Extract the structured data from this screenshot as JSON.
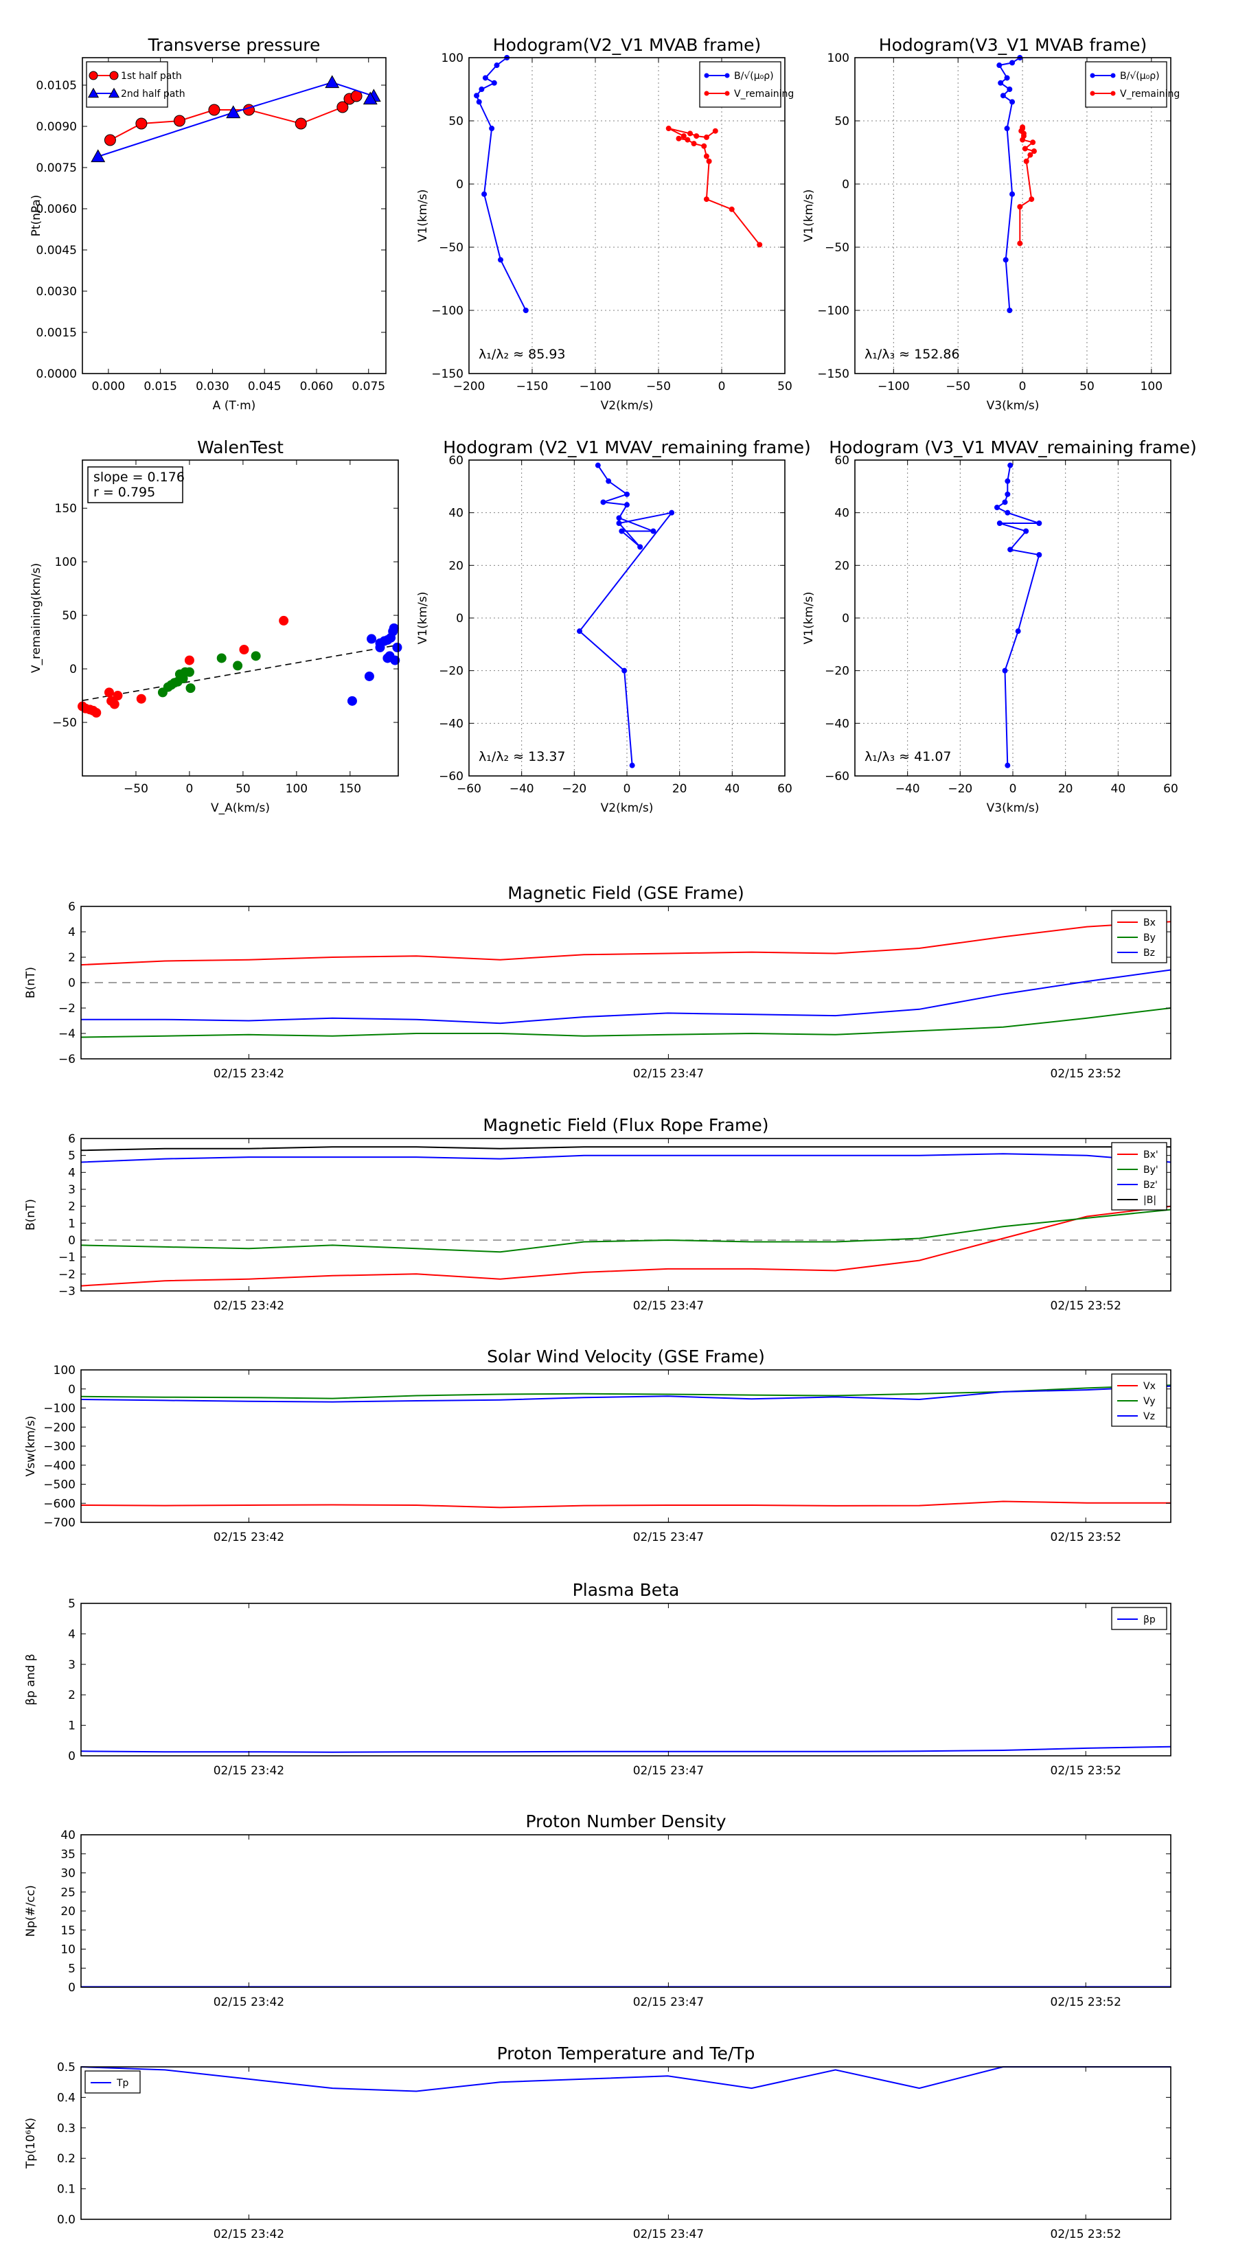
{
  "colors": {
    "red": "#ff0000",
    "green": "#008000",
    "blue": "#0000ff",
    "black": "#000000",
    "grid": "#808080"
  },
  "chart_data": [
    {
      "id": "transverse-pressure",
      "type": "line",
      "title": "Transverse pressure",
      "xlabel": "A (T·m)",
      "ylabel": "Pt(nPa)",
      "xlim": [
        -0.0075,
        0.08
      ],
      "ylim": [
        0,
        0.0115
      ],
      "xticks": [
        "0.000",
        "0.015",
        "0.030",
        "0.045",
        "0.060",
        "0.075"
      ],
      "yticks": [
        "0.0000",
        "0.0015",
        "0.0030",
        "0.0045",
        "0.0060",
        "0.0075",
        "0.0090",
        "0.0105"
      ],
      "grid": false,
      "legend_placement": "top-left",
      "series": [
        {
          "name": "1st half path",
          "color": "red",
          "marker": "circle",
          "x": [
            0.0005,
            0.0095,
            0.0205,
            0.0305,
            0.0405,
            0.0555,
            0.0675,
            0.0695,
            0.0715
          ],
          "y": [
            0.0085,
            0.0091,
            0.0092,
            0.0096,
            0.0096,
            0.0091,
            0.0097,
            0.01,
            0.0101
          ]
        },
        {
          "name": "2nd half path",
          "color": "blue",
          "marker": "triangle",
          "x": [
            -0.003,
            0.036,
            0.0645,
            0.0765,
            0.0755
          ],
          "y": [
            0.0079,
            0.0095,
            0.0106,
            0.0101,
            0.01
          ]
        }
      ]
    },
    {
      "id": "hodogram-v2-v1-mvab",
      "type": "line",
      "title": "Hodogram(V2_V1 MVAB frame)",
      "xlabel": "V2(km/s)",
      "ylabel": "V1(km/s)",
      "xlim": [
        -200,
        50
      ],
      "ylim": [
        -150,
        100
      ],
      "xticks": [
        "−200",
        "−150",
        "−100",
        "−50",
        "0",
        "50"
      ],
      "yticks": [
        "−150",
        "−100",
        "−50",
        "0",
        "50",
        "100"
      ],
      "grid": true,
      "legend_placement": "top-right",
      "annotation": "λ₁/λ₂ ≈ 85.93",
      "series": [
        {
          "name": "B/√(μ₀ρ)",
          "color": "blue",
          "x": [
            -155,
            -175,
            -188,
            -182,
            -192,
            -194,
            -190,
            -180,
            -187,
            -178,
            -170
          ],
          "y": [
            -100,
            -60,
            -8,
            44,
            65,
            70,
            75,
            80,
            84,
            94,
            100
          ]
        },
        {
          "name": "V_remaining",
          "color": "red",
          "x": [
            30,
            8,
            -12,
            -10,
            -12,
            -14,
            -22,
            -27,
            -34,
            -30,
            -42,
            -25,
            -20,
            -12,
            -5
          ],
          "y": [
            -48,
            -20,
            -12,
            18,
            22,
            30,
            32,
            35,
            36,
            38,
            44,
            40,
            38,
            37,
            42
          ]
        }
      ]
    },
    {
      "id": "hodogram-v3-v1-mvab",
      "type": "line",
      "title": "Hodogram(V3_V1 MVAB frame)",
      "xlabel": "V3(km/s)",
      "ylabel": "V1(km/s)",
      "xlim": [
        -130,
        115
      ],
      "ylim": [
        -150,
        100
      ],
      "xticks": [
        "−100",
        "−50",
        "0",
        "50",
        "100"
      ],
      "yticks": [
        "−150",
        "−100",
        "−50",
        "0",
        "50",
        "100"
      ],
      "grid": true,
      "legend_placement": "top-right",
      "annotation": "λ₁/λ₃ ≈ 152.86",
      "series": [
        {
          "name": "B/√(μ₀ρ)",
          "color": "blue",
          "x": [
            -10,
            -13,
            -8,
            -12,
            -8,
            -15,
            -10,
            -17,
            -12,
            -18,
            -8,
            -2
          ],
          "y": [
            -100,
            -60,
            -8,
            44,
            65,
            70,
            75,
            80,
            84,
            94,
            96,
            100
          ]
        },
        {
          "name": "V_remaining",
          "color": "red",
          "x": [
            -2,
            -2,
            7,
            3,
            6,
            9,
            2,
            8,
            0,
            1,
            1,
            -1,
            0,
            0
          ],
          "y": [
            -47,
            -18,
            -12,
            18,
            23,
            26,
            28,
            33,
            35,
            38,
            40,
            42,
            44,
            45
          ]
        }
      ]
    },
    {
      "id": "walen-test",
      "type": "scatter",
      "title": "WalenTest",
      "xlabel": "V_A(km/s)",
      "ylabel": "V_remaining(km/s)",
      "xlim": [
        -100,
        195
      ],
      "ylim": [
        -100,
        195
      ],
      "xticks": [
        "−50",
        "0",
        "50",
        "100",
        "150"
      ],
      "yticks": [
        "−50",
        "0",
        "50",
        "100",
        "150"
      ],
      "grid": false,
      "annotation": [
        "slope = 0.176",
        "r = 0.795"
      ],
      "fit_line": {
        "slope": 0.176,
        "intercept": -12
      },
      "series": [
        {
          "color": "red",
          "x": [
            -100,
            -97,
            -93,
            -90,
            -87,
            -75,
            -73,
            -70,
            -67,
            -45,
            0,
            51,
            88
          ],
          "y": [
            -35,
            -37,
            -38,
            -39,
            -41,
            -22,
            -30,
            -33,
            -25,
            -28,
            8,
            18,
            45
          ]
        },
        {
          "color": "green",
          "x": [
            -25,
            -20,
            -17,
            -14,
            -11,
            -9,
            -6,
            -4,
            0,
            1,
            30,
            45,
            62
          ],
          "y": [
            -22,
            -17,
            -15,
            -13,
            -12,
            -5,
            -9,
            -3,
            -3,
            -18,
            10,
            3,
            12
          ]
        },
        {
          "color": "blue",
          "x": [
            152,
            168,
            170,
            178,
            182,
            185,
            188,
            190,
            185,
            192,
            187,
            178,
            194,
            191
          ],
          "y": [
            -30,
            -7,
            28,
            24,
            26,
            27,
            29,
            35,
            10,
            8,
            12,
            20,
            20,
            38
          ]
        }
      ]
    },
    {
      "id": "hodogram-v2-v1-mvav",
      "type": "line",
      "title": "Hodogram (V2_V1 MVAV_remaining frame)",
      "xlabel": "V2(km/s)",
      "ylabel": "V1(km/s)",
      "xlim": [
        -60,
        60
      ],
      "ylim": [
        -60,
        60
      ],
      "xticks": [
        "−60",
        "−40",
        "−20",
        "0",
        "20",
        "40",
        "60"
      ],
      "yticks": [
        "−60",
        "−40",
        "−20",
        "0",
        "20",
        "40",
        "60"
      ],
      "grid": true,
      "annotation": "λ₁/λ₂ ≈ 13.37",
      "series": [
        {
          "color": "blue",
          "x": [
            2,
            -1,
            -18,
            17,
            -3,
            5,
            -2,
            10,
            -3,
            0,
            -9,
            0,
            -7,
            -11
          ],
          "y": [
            -56,
            -20,
            -5,
            40,
            36,
            27,
            33,
            33,
            38,
            43,
            44,
            47,
            52,
            58
          ]
        }
      ]
    },
    {
      "id": "hodogram-v3-v1-mvav",
      "type": "line",
      "title": "Hodogram (V3_V1 MVAV_remaining frame)",
      "xlabel": "V3(km/s)",
      "ylabel": "V1(km/s)",
      "xlim": [
        -60,
        60
      ],
      "ylim": [
        -60,
        60
      ],
      "xticks": [
        "−40",
        "−20",
        "0",
        "20",
        "40",
        "60"
      ],
      "yticks": [
        "−60",
        "−40",
        "−20",
        "0",
        "20",
        "40",
        "60"
      ],
      "grid": true,
      "annotation": "λ₁/λ₃ ≈ 41.07",
      "series": [
        {
          "color": "blue",
          "x": [
            -2,
            -3,
            2,
            10,
            -1,
            5,
            -5,
            10,
            -2,
            -6,
            -3,
            -2,
            -2,
            -1
          ],
          "y": [
            -56,
            -20,
            -5,
            24,
            26,
            33,
            36,
            36,
            40,
            42,
            44,
            47,
            52,
            58
          ]
        }
      ]
    },
    {
      "id": "magnetic-field-gse",
      "type": "line",
      "title": "Magnetic Field (GSE Frame)",
      "ylabel": "B(nT)",
      "ylim": [
        -6,
        6
      ],
      "xticks": [
        "02/15 23:42",
        "02/15 23:47",
        "02/15 23:52"
      ],
      "yticks": [
        "−6",
        "−4",
        "−2",
        "0",
        "2",
        "4",
        "6"
      ],
      "dashed_zero": true,
      "legend_placement": "top-right",
      "series": [
        {
          "name": "Bx",
          "color": "red",
          "values": [
            1.4,
            1.7,
            1.8,
            2.0,
            2.1,
            1.8,
            2.2,
            2.3,
            2.4,
            2.3,
            2.7,
            3.6,
            4.4,
            4.8
          ]
        },
        {
          "name": "By",
          "color": "green",
          "values": [
            -4.3,
            -4.2,
            -4.1,
            -4.2,
            -4.0,
            -4.0,
            -4.2,
            -4.1,
            -4.0,
            -4.1,
            -3.8,
            -3.5,
            -2.8,
            -2.0
          ]
        },
        {
          "name": "Bz",
          "color": "blue",
          "values": [
            -2.9,
            -2.9,
            -3.0,
            -2.8,
            -2.9,
            -3.2,
            -2.7,
            -2.4,
            -2.5,
            -2.6,
            -2.1,
            -0.9,
            0.1,
            1.0
          ]
        }
      ]
    },
    {
      "id": "magnetic-field-flux-rope",
      "type": "line",
      "title": "Magnetic Field (Flux Rope Frame)",
      "ylabel": "B(nT)",
      "ylim": [
        -3,
        6
      ],
      "xticks": [
        "02/15 23:42",
        "02/15 23:47",
        "02/15 23:52"
      ],
      "yticks": [
        "−3",
        "−2",
        "−1",
        "0",
        "1",
        "2",
        "3",
        "4",
        "5",
        "6"
      ],
      "dashed_zero": true,
      "legend_placement": "top-right",
      "series": [
        {
          "name": "Bx'",
          "color": "red",
          "values": [
            -2.7,
            -2.4,
            -2.3,
            -2.1,
            -2.0,
            -2.3,
            -1.9,
            -1.7,
            -1.7,
            -1.8,
            -1.2,
            0.1,
            1.4,
            2.0
          ]
        },
        {
          "name": "By'",
          "color": "green",
          "values": [
            -0.3,
            -0.4,
            -0.5,
            -0.3,
            -0.5,
            -0.7,
            -0.1,
            0.0,
            -0.1,
            -0.1,
            0.1,
            0.8,
            1.3,
            1.8
          ]
        },
        {
          "name": "Bz'",
          "color": "blue",
          "values": [
            4.6,
            4.8,
            4.9,
            4.9,
            4.9,
            4.8,
            5.0,
            5.0,
            5.0,
            5.0,
            5.0,
            5.1,
            5.0,
            4.6
          ]
        },
        {
          "name": "|B|",
          "color": "black",
          "values": [
            5.3,
            5.4,
            5.4,
            5.5,
            5.5,
            5.4,
            5.5,
            5.5,
            5.5,
            5.5,
            5.5,
            5.5,
            5.5,
            5.5
          ]
        }
      ]
    },
    {
      "id": "solar-wind-velocity",
      "type": "line",
      "title": "Solar Wind Velocity (GSE Frame)",
      "ylabel": "Vsw(km/s)",
      "ylim": [
        -700,
        100
      ],
      "xticks": [
        "02/15 23:42",
        "02/15 23:47",
        "02/15 23:52"
      ],
      "yticks": [
        "−700",
        "−600",
        "−500",
        "−400",
        "−300",
        "−200",
        "−100",
        "0",
        "100"
      ],
      "legend_placement": "top-right",
      "series": [
        {
          "name": "Vx",
          "color": "red",
          "values": [
            -610,
            -612,
            -610,
            -608,
            -610,
            -622,
            -612,
            -610,
            -610,
            -613,
            -612,
            -590,
            -598,
            -598
          ]
        },
        {
          "name": "Vy",
          "color": "green",
          "values": [
            -40,
            -43,
            -45,
            -50,
            -35,
            -28,
            -25,
            -28,
            -32,
            -35,
            -25,
            -15,
            5,
            20
          ]
        },
        {
          "name": "Vz",
          "color": "blue",
          "values": [
            -55,
            -60,
            -65,
            -68,
            -62,
            -58,
            -45,
            -38,
            -52,
            -42,
            -55,
            -15,
            -5,
            15
          ]
        }
      ]
    },
    {
      "id": "plasma-beta",
      "type": "line",
      "title": "Plasma Beta",
      "ylabel": "βp and β",
      "ylim": [
        0,
        5
      ],
      "xticks": [
        "02/15 23:42",
        "02/15 23:47",
        "02/15 23:52"
      ],
      "yticks": [
        "0",
        "1",
        "2",
        "3",
        "4",
        "5"
      ],
      "legend_placement": "top-right",
      "series": [
        {
          "name": "βp",
          "color": "blue",
          "values": [
            0.15,
            0.13,
            0.13,
            0.12,
            0.13,
            0.13,
            0.14,
            0.14,
            0.14,
            0.14,
            0.15,
            0.18,
            0.25,
            0.3
          ]
        }
      ]
    },
    {
      "id": "proton-number-density",
      "type": "line",
      "title": "Proton Number Density",
      "ylabel": "Np(#/cc)",
      "ylim": [
        0,
        40
      ],
      "xticks": [
        "02/15 23:42",
        "02/15 23:47",
        "02/15 23:52"
      ],
      "yticks": [
        "0",
        "5",
        "10",
        "15",
        "20",
        "25",
        "30",
        "35",
        "40"
      ],
      "series": [
        {
          "color": "blue",
          "values": [
            0.1,
            0.1,
            0.1,
            0.1,
            0.1,
            0.1,
            0.1,
            0.1,
            0.1,
            0.1,
            0.1,
            0.1,
            0.1,
            0.1
          ]
        }
      ]
    },
    {
      "id": "proton-temperature",
      "type": "line",
      "title": "Proton Temperature and Te/Tp",
      "ylabel": "Tp(10⁶K)",
      "ylim": [
        0,
        0.5
      ],
      "xticks": [
        "02/15 23:42",
        "02/15 23:47",
        "02/15 23:52"
      ],
      "yticks": [
        "0.0",
        "0.1",
        "0.2",
        "0.3",
        "0.4",
        "0.5"
      ],
      "legend_placement": "top-left",
      "series": [
        {
          "name": "Tp",
          "color": "blue",
          "values": [
            0.5,
            0.49,
            0.46,
            0.43,
            0.42,
            0.45,
            0.46,
            0.47,
            0.43,
            0.49,
            0.43,
            0.51,
            0.55,
            0.55
          ]
        }
      ]
    }
  ]
}
